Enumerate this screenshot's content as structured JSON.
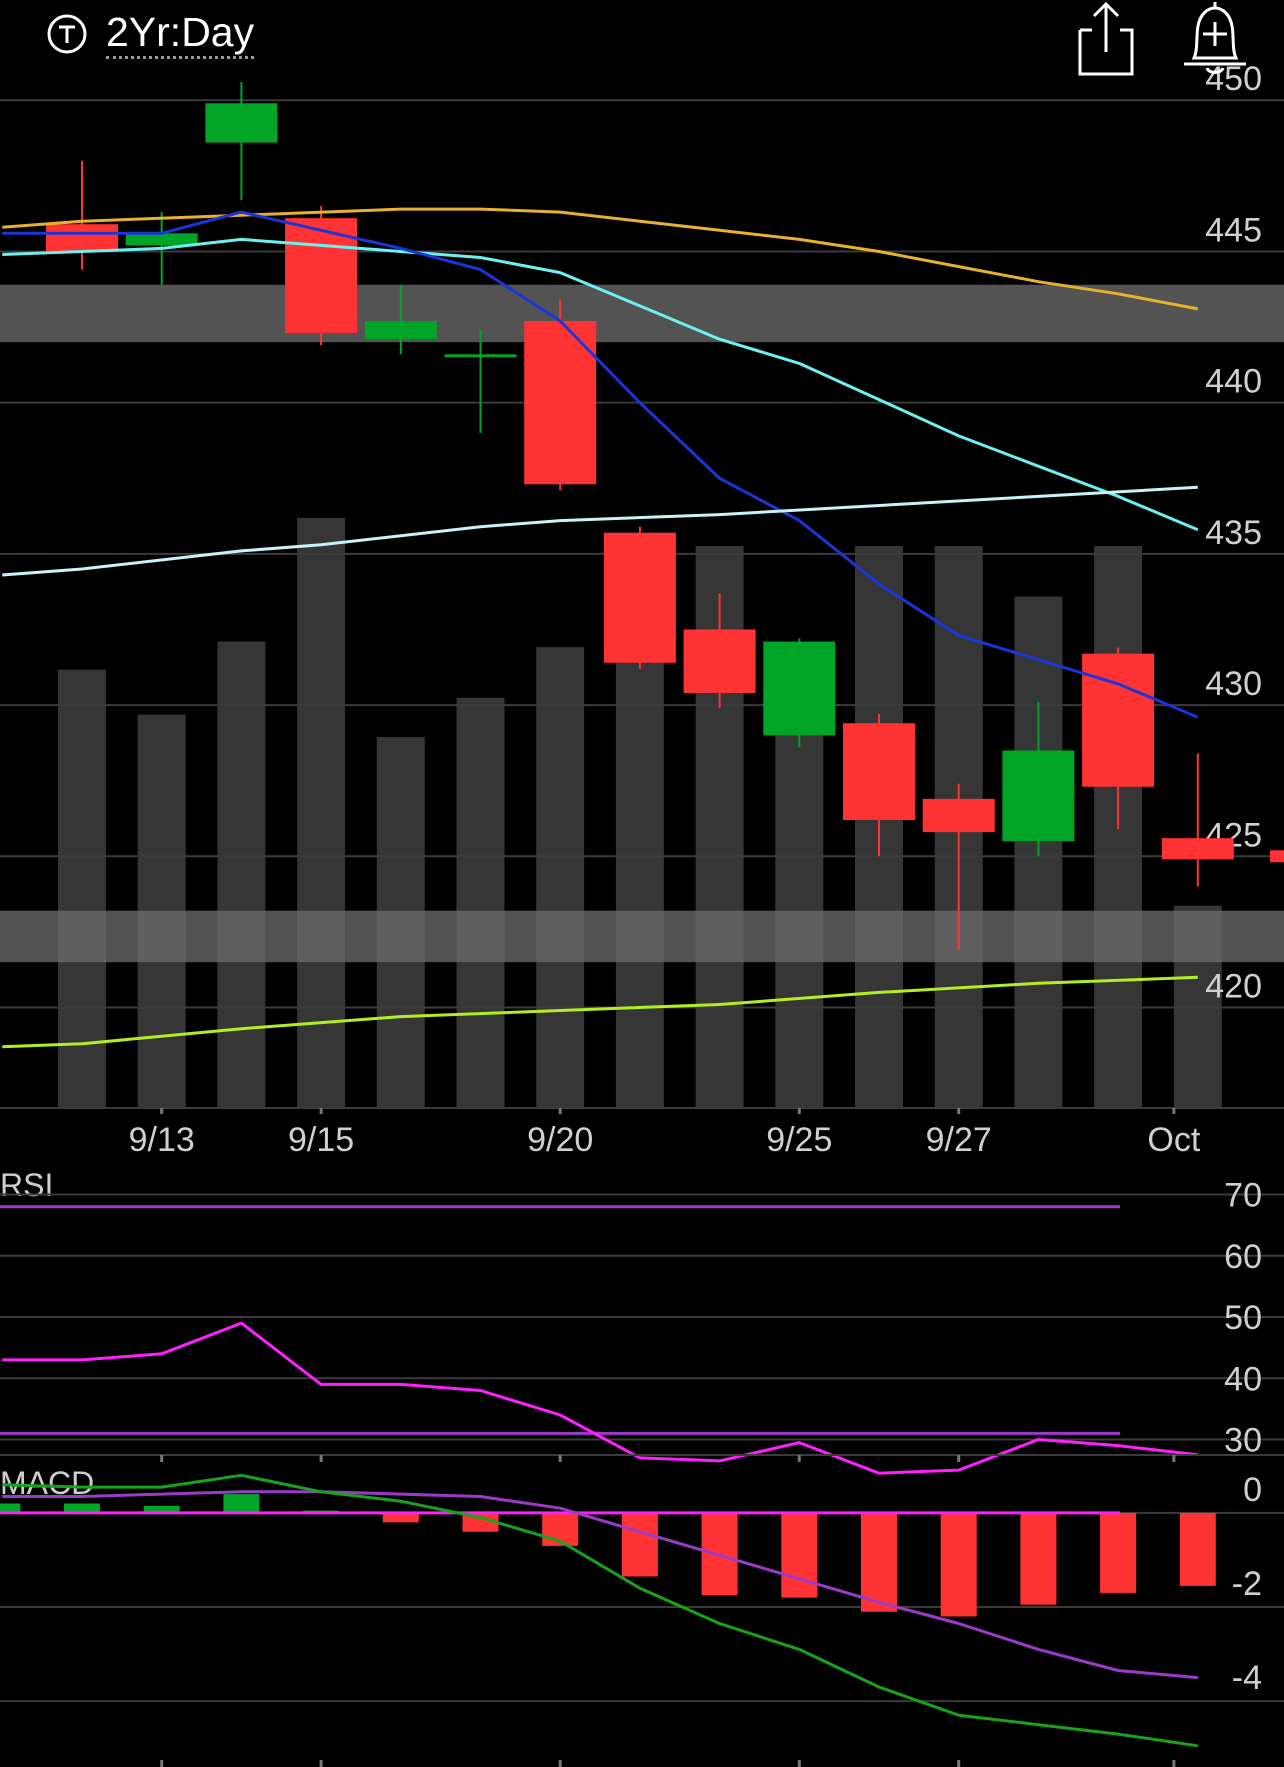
{
  "header": {
    "timeframe": "2Yr:Day",
    "icons": {
      "timeframe": "t-circle-icon",
      "share": "share-icon",
      "alert": "bell-plus-icon"
    }
  },
  "colors": {
    "up": "#00a528",
    "down": "#ff3333",
    "volume": "#363636",
    "grid": "#3b3b3b",
    "ma_blue": "#1a35d8",
    "ma_cyan": "#6ff0f0",
    "ma_gold": "#e7b22d",
    "ma_lightcyan": "#c8f4f8",
    "ma_lime": "#b3ee1e",
    "rsi": "#ff1fff",
    "rsi_band": "#9b3ac8",
    "macd_line": "#17a31a",
    "macd_signal": "#9b3ac8",
    "macd_zero": "#ff1fff",
    "zone": "#6a6a6a"
  },
  "chart_data": [
    {
      "type": "candlestick",
      "panel": "price",
      "y_ticks": [
        450,
        445,
        440,
        435,
        430,
        425,
        420
      ],
      "ylim": [
        418,
        451
      ],
      "x_tick_labels": [
        {
          "at": 1,
          "label": "9/13"
        },
        {
          "at": 3,
          "label": "9/15"
        },
        {
          "at": 6,
          "label": "9/20"
        },
        {
          "at": 9,
          "label": "9/25"
        },
        {
          "at": 11,
          "label": "9/27"
        },
        {
          "at": 13.7,
          "label": "Oct"
        }
      ],
      "candles": [
        {
          "i": 0,
          "open": 445.9,
          "close": 445.0,
          "high": 448.0,
          "low": 444.4
        },
        {
          "i": 1,
          "open": 445.2,
          "close": 445.6,
          "high": 446.3,
          "low": 443.9
        },
        {
          "i": 2,
          "open": 448.6,
          "close": 449.9,
          "high": 450.6,
          "low": 446.7
        },
        {
          "i": 3,
          "open": 446.1,
          "close": 442.3,
          "high": 446.5,
          "low": 441.9
        },
        {
          "i": 4,
          "open": 442.1,
          "close": 442.7,
          "high": 443.9,
          "low": 441.6
        },
        {
          "i": 5,
          "open": 441.6,
          "close": 441.6,
          "high": 442.4,
          "low": 439.0
        },
        {
          "i": 6,
          "open": 442.7,
          "close": 437.3,
          "high": 443.4,
          "low": 437.1
        },
        {
          "i": 7,
          "open": 435.7,
          "close": 431.4,
          "high": 435.9,
          "low": 431.2
        },
        {
          "i": 8,
          "open": 432.5,
          "close": 430.4,
          "high": 433.7,
          "low": 429.9
        },
        {
          "i": 9,
          "open": 429.0,
          "close": 432.1,
          "high": 432.2,
          "low": 428.6
        },
        {
          "i": 10,
          "open": 429.4,
          "close": 426.2,
          "high": 429.7,
          "low": 425.0
        },
        {
          "i": 11,
          "open": 426.9,
          "close": 425.8,
          "high": 427.4,
          "low": 421.9
        },
        {
          "i": 12,
          "open": 425.5,
          "close": 428.5,
          "high": 430.1,
          "low": 425.0
        },
        {
          "i": 13,
          "open": 431.7,
          "close": 427.3,
          "high": 431.9,
          "low": 425.9
        },
        {
          "i": 14,
          "open": 425.6,
          "close": 424.9,
          "high": 428.4,
          "low": 424.0
        }
      ],
      "last_price": 425.0,
      "volume_relative": [
        0.78,
        0.7,
        0.83,
        1.05,
        0.66,
        0.73,
        0.82,
        1.0,
        1.0,
        0.74,
        1.0,
        1.0,
        0.91,
        1.0,
        0.36
      ],
      "zones": [
        {
          "y_top": 443.9,
          "y_bottom": 442.0
        },
        {
          "y_top": 423.2,
          "y_bottom": 421.5
        }
      ],
      "moving_averages": [
        {
          "color_key": "ma_gold",
          "points": [
            [
              -1,
              445.8
            ],
            [
              0,
              446.0
            ],
            [
              2,
              446.2
            ],
            [
              4,
              446.4
            ],
            [
              5,
              446.4
            ],
            [
              6,
              446.3
            ],
            [
              7,
              446.0
            ],
            [
              8,
              445.7
            ],
            [
              9,
              445.4
            ],
            [
              10,
              445.0
            ],
            [
              11,
              444.5
            ],
            [
              12,
              444.0
            ],
            [
              13,
              443.6
            ],
            [
              14,
              443.1
            ]
          ]
        },
        {
          "color_key": "ma_cyan",
          "points": [
            [
              -1,
              444.9
            ],
            [
              0,
              445.0
            ],
            [
              1,
              445.1
            ],
            [
              2,
              445.4
            ],
            [
              3,
              445.2
            ],
            [
              4,
              445.0
            ],
            [
              5,
              444.8
            ],
            [
              6,
              444.3
            ],
            [
              7,
              443.2
            ],
            [
              8,
              442.1
            ],
            [
              9,
              441.3
            ],
            [
              10,
              440.1
            ],
            [
              11,
              438.9
            ],
            [
              12,
              437.9
            ],
            [
              13,
              436.9
            ],
            [
              14,
              435.8
            ]
          ]
        },
        {
          "color_key": "ma_blue",
          "points": [
            [
              -1,
              445.6
            ],
            [
              0,
              445.6
            ],
            [
              1,
              445.6
            ],
            [
              2,
              446.3
            ],
            [
              3,
              445.7
            ],
            [
              4,
              445.1
            ],
            [
              5,
              444.4
            ],
            [
              6,
              442.7
            ],
            [
              7,
              440.0
            ],
            [
              8,
              437.5
            ],
            [
              9,
              436.1
            ],
            [
              10,
              434.0
            ],
            [
              11,
              432.3
            ],
            [
              12,
              431.5
            ],
            [
              13,
              430.7
            ],
            [
              14,
              429.6
            ]
          ]
        },
        {
          "color_key": "ma_lightcyan",
          "points": [
            [
              -1,
              434.3
            ],
            [
              0,
              434.5
            ],
            [
              2,
              435.1
            ],
            [
              3,
              435.3
            ],
            [
              5,
              435.9
            ],
            [
              6,
              436.1
            ],
            [
              8,
              436.3
            ],
            [
              10,
              436.6
            ],
            [
              12,
              436.9
            ],
            [
              14,
              437.2
            ]
          ]
        },
        {
          "color_key": "ma_lime",
          "points": [
            [
              -1,
              418.7
            ],
            [
              0,
              418.8
            ],
            [
              2,
              419.3
            ],
            [
              4,
              419.7
            ],
            [
              6,
              419.9
            ],
            [
              8,
              420.1
            ],
            [
              10,
              420.5
            ],
            [
              12,
              420.8
            ],
            [
              14,
              421.0
            ]
          ]
        }
      ]
    },
    {
      "type": "line",
      "panel": "rsi",
      "title": "RSI",
      "y_ticks": [
        70,
        60,
        50,
        40,
        30
      ],
      "ylim": [
        26,
        74
      ],
      "bands": [
        68,
        31
      ],
      "x": [
        -1,
        0,
        1,
        2,
        3,
        4,
        5,
        6,
        7,
        8,
        9,
        10,
        11,
        12,
        13,
        14
      ],
      "values": [
        43,
        43,
        44,
        49,
        39,
        39,
        38,
        34,
        27,
        26.5,
        29.5,
        24.5,
        25,
        30,
        29,
        27.5
      ]
    },
    {
      "type": "bar+line",
      "panel": "macd",
      "title": "MACD",
      "y_ticks": [
        0,
        -2,
        -4
      ],
      "ylim": [
        -5.4,
        0.7
      ],
      "x": [
        -1,
        0,
        1,
        2,
        3,
        4,
        5,
        6,
        7,
        8,
        9,
        10,
        11,
        12,
        13,
        14
      ],
      "histogram": [
        0.2,
        0.2,
        0.15,
        0.4,
        0.05,
        -0.2,
        -0.4,
        -0.7,
        -1.35,
        -1.75,
        -1.8,
        -2.1,
        -2.2,
        -1.95,
        -1.7,
        -1.55
      ],
      "macd_line": [
        0.6,
        0.55,
        0.55,
        0.8,
        0.45,
        0.25,
        -0.1,
        -0.6,
        -1.6,
        -2.35,
        -2.9,
        -3.7,
        -4.3,
        -4.5,
        -4.7,
        -4.95
      ],
      "signal_line": [
        0.35,
        0.35,
        0.4,
        0.45,
        0.45,
        0.4,
        0.35,
        0.1,
        -0.4,
        -0.9,
        -1.4,
        -1.9,
        -2.35,
        -2.9,
        -3.35,
        -3.5
      ]
    }
  ]
}
